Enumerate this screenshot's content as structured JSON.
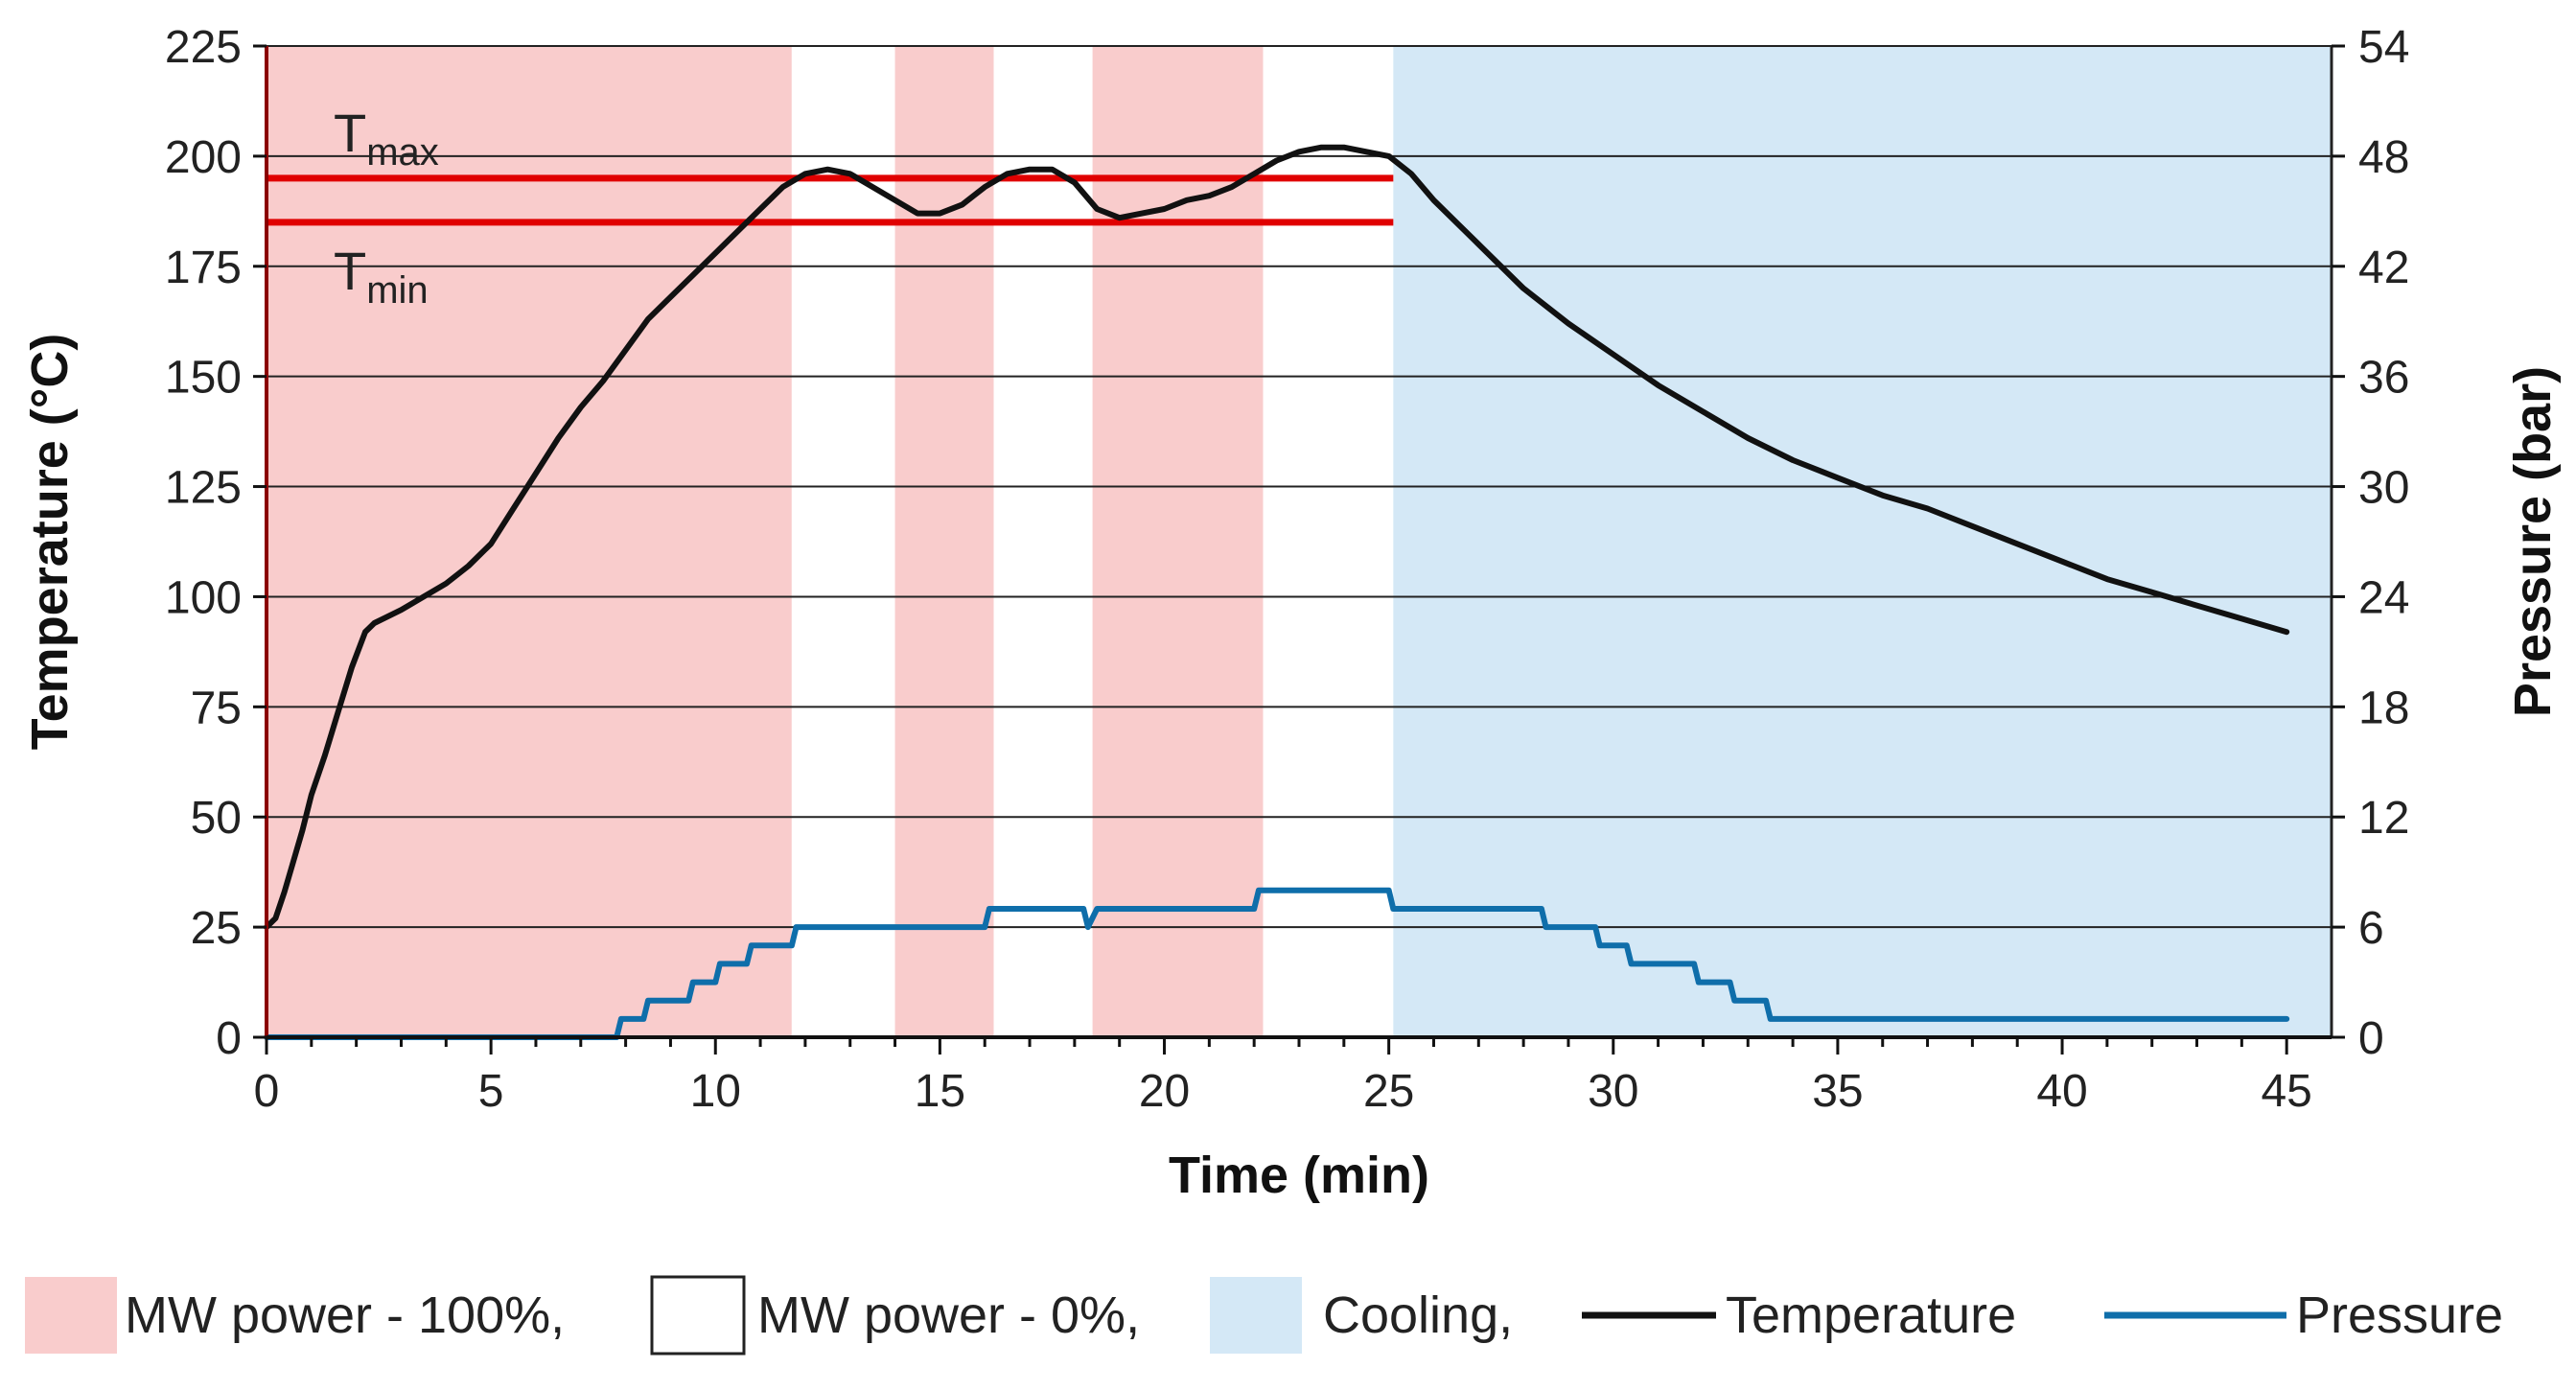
{
  "chart_data": {
    "type": "line",
    "title": "",
    "xlabel": "Time (min)",
    "ylabel": "Temperature (°C)",
    "y2label": "Pressure (bar)",
    "xlim": [
      0,
      46
    ],
    "ylim": [
      0,
      225
    ],
    "y2lim": [
      0,
      54
    ],
    "x_ticks": [
      0,
      5,
      10,
      15,
      20,
      25,
      30,
      35,
      40,
      45
    ],
    "y_ticks": [
      0,
      25,
      50,
      75,
      100,
      125,
      150,
      175,
      200,
      225
    ],
    "y2_ticks": [
      0,
      6,
      12,
      18,
      24,
      30,
      36,
      42,
      48,
      54
    ],
    "grid": true,
    "colors": {
      "heating": "#f9cccc",
      "off": "#ffffff",
      "cooling": "#d4e8f6",
      "temperature": "#111111",
      "pressure": "#0f6eaa",
      "limits": "#e00000"
    },
    "regions": [
      {
        "label": "MW power - 100%",
        "kind": "heating",
        "x0": 0,
        "x1": 11.7
      },
      {
        "label": "MW power - 0%",
        "kind": "off",
        "x0": 11.7,
        "x1": 14.0
      },
      {
        "label": "MW power - 100%",
        "kind": "heating",
        "x0": 14.0,
        "x1": 16.2
      },
      {
        "label": "MW power - 0%",
        "kind": "off",
        "x0": 16.2,
        "x1": 18.4
      },
      {
        "label": "MW power - 100%",
        "kind": "heating",
        "x0": 18.4,
        "x1": 22.2
      },
      {
        "label": "MW power - 0%",
        "kind": "off",
        "x0": 22.2,
        "x1": 25.1
      },
      {
        "label": "Cooling",
        "kind": "cooling",
        "x0": 25.1,
        "x1": 46
      }
    ],
    "limits": [
      {
        "name": "T",
        "sub": "max",
        "value": 195,
        "x0": 0,
        "x1": 25.1
      },
      {
        "name": "T",
        "sub": "min",
        "value": 185,
        "x0": 0,
        "x1": 25.1
      }
    ],
    "series": [
      {
        "name": "Temperature",
        "axis": "left",
        "x": [
          0,
          0.2,
          0.4,
          0.6,
          0.8,
          1.0,
          1.3,
          1.6,
          1.9,
          2.2,
          2.4,
          2.6,
          3.0,
          3.5,
          4.0,
          4.5,
          5.0,
          5.5,
          6.0,
          6.5,
          7.0,
          7.5,
          8.0,
          8.5,
          9.0,
          9.5,
          10.0,
          10.5,
          11.0,
          11.5,
          12.0,
          12.5,
          13.0,
          13.5,
          14.0,
          14.5,
          15.0,
          15.5,
          16.0,
          16.5,
          17.0,
          17.5,
          18.0,
          18.5,
          19.0,
          19.5,
          20.0,
          20.5,
          21.0,
          21.5,
          22.0,
          22.5,
          23.0,
          23.5,
          24.0,
          24.5,
          25.0,
          25.5,
          26.0,
          27.0,
          28.0,
          29.0,
          30.0,
          31.0,
          32.0,
          33.0,
          34.0,
          35.0,
          36.0,
          37.0,
          38.0,
          39.0,
          40.0,
          41.0,
          42.0,
          43.0,
          44.0,
          45.0
        ],
        "values": [
          25,
          27,
          33,
          40,
          47,
          55,
          64,
          74,
          84,
          92,
          94,
          95,
          97,
          100,
          103,
          107,
          112,
          120,
          128,
          136,
          143,
          149,
          156,
          163,
          168,
          173,
          178,
          183,
          188,
          193,
          196,
          197,
          196,
          193,
          190,
          187,
          187,
          189,
          193,
          196,
          197,
          197,
          194,
          188,
          186,
          187,
          188,
          190,
          191,
          193,
          196,
          199,
          201,
          202,
          202,
          201,
          200,
          196,
          190,
          180,
          170,
          162,
          155,
          148,
          142,
          136,
          131,
          127,
          123,
          120,
          116,
          112,
          108,
          104,
          101,
          98,
          95,
          92
        ]
      },
      {
        "name": "Pressure",
        "axis": "right",
        "x": [
          0,
          7.8,
          7.9,
          8.4,
          8.5,
          8.8,
          9.0,
          9.4,
          9.5,
          10.0,
          10.1,
          10.7,
          10.8,
          11.7,
          11.8,
          16.0,
          16.1,
          18.2,
          18.3,
          18.5,
          22.0,
          22.1,
          25.0,
          25.1,
          28.4,
          28.5,
          29.6,
          29.7,
          30.3,
          30.4,
          31.8,
          31.9,
          32.6,
          32.7,
          33.4,
          33.5,
          45.0
        ],
        "values": [
          0,
          0,
          1,
          1,
          2,
          2,
          2,
          2,
          3,
          3,
          4,
          4,
          5,
          5,
          6,
          6,
          7,
          7,
          6,
          7,
          7,
          8,
          8,
          7,
          7,
          6,
          6,
          5,
          5,
          4,
          4,
          3,
          3,
          2,
          2,
          1,
          1
        ]
      }
    ],
    "legend": {
      "placement": "bottom",
      "items": [
        {
          "label": "MW power - 100%,",
          "kind": "swatch",
          "color": "#f9cccc"
        },
        {
          "label": "MW power - 0%,",
          "kind": "swatch",
          "color": "#ffffff"
        },
        {
          "label": "Cooling,",
          "kind": "swatch",
          "color": "#d4e8f6"
        },
        {
          "label": "Temperature",
          "kind": "line",
          "color": "#111111"
        },
        {
          "label": "Pressure",
          "kind": "line",
          "color": "#0f6eaa"
        }
      ]
    }
  }
}
